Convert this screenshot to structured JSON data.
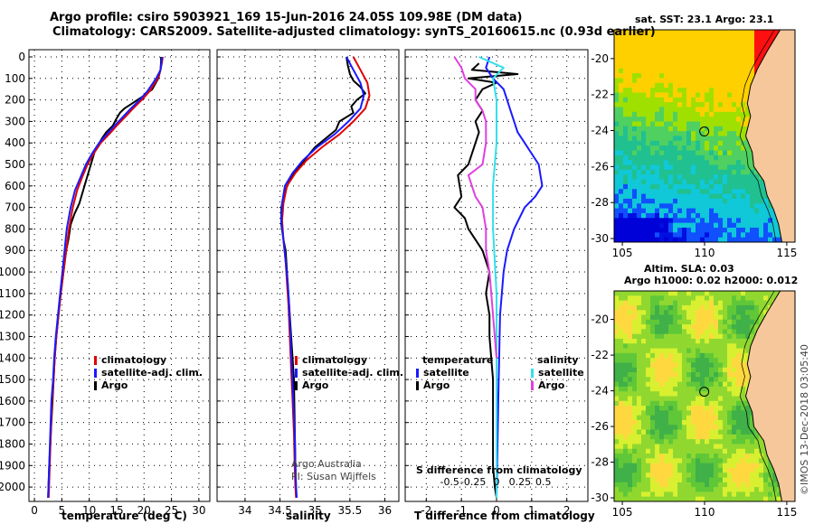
{
  "header": {
    "line1": "Argo profile: csiro 5903921_169 15-Jun-2016 24.05S 109.98E (DM data)",
    "line2": "Climatology: CARS2009. Satellite-adjusted climatology: synTS_20160615.nc (0.93d earlier)"
  },
  "credits": {
    "line1": "Argo Australia",
    "line2": "PI: Susan Wijffels",
    "side": "©IMOS 13-Dec-2018 03:05:40"
  },
  "colors": {
    "argo": "#000000",
    "climatology": "#e00000",
    "satellite": "#1a1aff",
    "satellite_salinity": "#33e0ee",
    "argo_salinity_diff": "#e040e0"
  },
  "depth_ticks": [
    "0",
    "100",
    "200",
    "300",
    "400",
    "500",
    "600",
    "700",
    "800",
    "900",
    "1000",
    "1100",
    "1200",
    "1300",
    "1400",
    "1500",
    "1600",
    "1700",
    "1800",
    "1900",
    "2000"
  ],
  "chart_data": [
    {
      "type": "line",
      "id": "temperature",
      "xlabel": "temperature (deg C)",
      "ylabel": "",
      "xlim": [
        -1,
        32
      ],
      "ylim": [
        2050,
        -10
      ],
      "x_ticks": [
        "0",
        "5",
        "10",
        "15",
        "20",
        "25",
        "30"
      ],
      "grid": true,
      "legend": [
        "climatology",
        "satellite-adj. clim.",
        "Argo"
      ],
      "series": [
        {
          "name": "Argo",
          "color_key": "argo",
          "x": [
            23.1,
            23.1,
            23.0,
            22.6,
            21.5,
            20.5,
            20.0,
            18.8,
            17.6,
            16.4,
            15.6,
            14.9,
            14.3,
            13.1,
            12.3,
            11.6,
            11.0,
            10.3,
            9.6,
            8.9,
            8.2,
            7.3,
            6.6,
            6.2,
            5.8,
            5.3,
            4.8,
            4.4,
            4.0,
            3.7,
            3.5,
            3.3,
            3.1,
            2.9,
            2.7,
            2.5
          ],
          "y": [
            0,
            20,
            60,
            100,
            150,
            170,
            180,
            200,
            220,
            240,
            260,
            290,
            320,
            350,
            380,
            410,
            440,
            500,
            560,
            620,
            680,
            730,
            780,
            850,
            900,
            1000,
            1100,
            1200,
            1300,
            1400,
            1500,
            1600,
            1700,
            1800,
            1900,
            2050
          ]
        },
        {
          "name": "climatology",
          "color_key": "climatology",
          "x": [
            23.4,
            23.3,
            23.0,
            22.5,
            21.0,
            19.6,
            18.0,
            16.5,
            15.0,
            13.6,
            12.1,
            10.8,
            9.7,
            8.7,
            7.8,
            7.0,
            6.3,
            5.8,
            5.3,
            4.8,
            4.4,
            4.0,
            3.7,
            3.5,
            3.2,
            3.0,
            2.8,
            2.6
          ],
          "y": [
            0,
            20,
            60,
            100,
            160,
            200,
            240,
            280,
            320,
            360,
            400,
            450,
            500,
            560,
            620,
            700,
            800,
            900,
            1000,
            1100,
            1200,
            1300,
            1400,
            1500,
            1600,
            1750,
            1900,
            2050
          ]
        },
        {
          "name": "satellite-adj. clim.",
          "color_key": "satellite",
          "x": [
            23.3,
            23.2,
            23.0,
            22.2,
            20.6,
            19.2,
            17.6,
            16.1,
            14.6,
            13.2,
            11.8,
            10.5,
            9.4,
            8.4,
            7.4,
            6.6,
            5.9,
            5.5,
            5.1,
            4.7,
            4.3,
            3.9,
            3.6,
            3.4,
            3.1,
            2.9,
            2.7,
            2.5
          ],
          "y": [
            0,
            20,
            60,
            100,
            160,
            200,
            240,
            280,
            320,
            360,
            400,
            450,
            500,
            560,
            620,
            700,
            800,
            900,
            1000,
            1100,
            1200,
            1300,
            1400,
            1500,
            1600,
            1750,
            1900,
            2050
          ]
        }
      ]
    },
    {
      "type": "line",
      "id": "salinity",
      "xlabel": "salinity",
      "ylabel": "",
      "xlim": [
        33.6,
        36.2
      ],
      "ylim": [
        2050,
        -10
      ],
      "x_ticks": [
        "34",
        "34.5",
        "35",
        "35.5",
        "36"
      ],
      "grid": true,
      "legend": [
        "climatology",
        "satellite-adj. clim.",
        "Argo"
      ],
      "series": [
        {
          "name": "Argo",
          "color_key": "argo",
          "x": [
            35.45,
            35.47,
            35.5,
            35.55,
            35.65,
            35.72,
            35.6,
            35.52,
            35.55,
            35.35,
            35.3,
            35.0,
            34.85,
            34.7,
            34.6,
            34.55,
            34.52,
            34.52,
            34.55,
            34.58,
            34.6,
            34.62,
            34.64,
            34.66,
            34.68,
            34.7,
            34.71,
            34.72,
            34.73
          ],
          "y": [
            0,
            40,
            80,
            110,
            140,
            170,
            200,
            230,
            260,
            300,
            340,
            420,
            480,
            540,
            600,
            650,
            700,
            780,
            850,
            900,
            1000,
            1100,
            1200,
            1300,
            1400,
            1500,
            1700,
            1900,
            2050
          ]
        },
        {
          "name": "climatology",
          "color_key": "climatology",
          "x": [
            35.55,
            35.65,
            35.75,
            35.78,
            35.72,
            35.55,
            35.35,
            35.1,
            34.88,
            34.72,
            34.6,
            34.55,
            34.53,
            34.55,
            34.58,
            34.6,
            34.62,
            34.64,
            34.66,
            34.68,
            34.7,
            34.71,
            34.72,
            34.73
          ],
          "y": [
            0,
            60,
            120,
            180,
            240,
            300,
            360,
            420,
            480,
            540,
            600,
            680,
            760,
            850,
            950,
            1050,
            1150,
            1300,
            1450,
            1600,
            1750,
            1900,
            2000,
            2050
          ]
        },
        {
          "name": "satellite-adj. clim.",
          "color_key": "satellite",
          "x": [
            35.45,
            35.55,
            35.65,
            35.7,
            35.65,
            35.48,
            35.28,
            35.03,
            34.83,
            34.68,
            34.57,
            34.53,
            34.52,
            34.55,
            34.58,
            34.61,
            34.63,
            34.65,
            34.67,
            34.69,
            34.71,
            34.72,
            34.73,
            34.74
          ],
          "y": [
            0,
            60,
            120,
            180,
            240,
            300,
            360,
            420,
            480,
            540,
            600,
            680,
            760,
            850,
            950,
            1050,
            1150,
            1300,
            1450,
            1600,
            1750,
            1900,
            2000,
            2050
          ]
        }
      ]
    },
    {
      "type": "line",
      "id": "difference",
      "xlabel": "T difference from climatology",
      "xlabel2": "S difference from climatology",
      "ylabel": "",
      "xlim": [
        -2.6,
        2.6
      ],
      "ylim": [
        2050,
        -10
      ],
      "x_ticks": [
        "-2",
        "-1",
        "0",
        "1",
        "2"
      ],
      "x_ticks2": [
        "-0.5",
        "-0.25",
        "0",
        "0.25",
        "0.5"
      ],
      "grid": true,
      "legend_left_title": "temperature",
      "legend_right_title": "salinity",
      "legend_left": [
        "satellite",
        "Argo"
      ],
      "legend_right": [
        "satellite",
        "Argo"
      ],
      "series": [
        {
          "name": "temperature Argo",
          "color_key": "argo",
          "x": [
            -0.5,
            -0.7,
            0.6,
            -0.8,
            0.0,
            -0.4,
            -0.6,
            -0.4,
            -0.6,
            -0.5,
            -0.6,
            -0.8,
            -1.1,
            -1.0,
            -1.2,
            -0.9,
            -0.8,
            -0.4,
            -0.2,
            -0.3,
            -0.2,
            -0.2,
            -0.1,
            -0.1,
            -0.1,
            -0.05,
            0.0
          ],
          "y": [
            30,
            60,
            80,
            100,
            120,
            150,
            200,
            250,
            300,
            350,
            400,
            500,
            550,
            650,
            700,
            750,
            800,
            900,
            1000,
            1100,
            1200,
            1300,
            1500,
            1700,
            1900,
            2000,
            2050
          ]
        },
        {
          "name": "temperature satellite",
          "color_key": "satellite",
          "x": [
            -0.2,
            -0.3,
            -0.1,
            0.2,
            0.3,
            0.4,
            0.5,
            0.6,
            0.8,
            1.2,
            1.3,
            1.1,
            0.8,
            0.5,
            0.3,
            0.2,
            0.1,
            0.05,
            0.0
          ],
          "y": [
            0,
            50,
            100,
            150,
            200,
            250,
            300,
            350,
            400,
            500,
            600,
            650,
            700,
            800,
            900,
            1000,
            1200,
            1600,
            2050
          ]
        },
        {
          "name": "salinity satellite",
          "color_key": "satellite_salinity",
          "x": [
            -0.5,
            0.2,
            -0.1,
            0.0,
            0.0,
            -0.1,
            -0.1,
            0.0,
            0.0,
            0.0
          ],
          "y": [
            0,
            50,
            100,
            200,
            400,
            600,
            800,
            1100,
            1500,
            2050
          ]
        },
        {
          "name": "salinity Argo",
          "color_key": "argo_salinity_diff",
          "x": [
            -1.2,
            -1.0,
            -0.9,
            -0.6,
            -0.6,
            -0.4,
            -0.3,
            -0.3,
            -0.4,
            -0.8,
            -0.6,
            -0.4,
            -0.3,
            -0.3,
            -0.2,
            -0.1,
            0.0
          ],
          "y": [
            0,
            50,
            100,
            150,
            200,
            250,
            300,
            400,
            500,
            550,
            650,
            700,
            800,
            900,
            1000,
            1200,
            1400
          ]
        }
      ]
    },
    {
      "type": "heatmap",
      "id": "sst-map",
      "title": "sat. SST: 23.1 Argo: 23.1",
      "xlim": [
        104.5,
        115.5
      ],
      "ylim": [
        -30.2,
        -18.4
      ],
      "x_ticks": [
        "105",
        "110",
        "115"
      ],
      "y_ticks": [
        "-20",
        "-22",
        "-24",
        "-26",
        "-28",
        "-30"
      ],
      "marker": {
        "lon": 109.98,
        "lat": -24.05
      }
    },
    {
      "type": "heatmap",
      "id": "sla-map",
      "title_line1": "Altim. SLA: 0.03",
      "title_line2": "Argo h1000: 0.02 h2000: 0.012",
      "xlim": [
        104.5,
        115.5
      ],
      "ylim": [
        -30.2,
        -18.4
      ],
      "x_ticks": [
        "105",
        "110",
        "115"
      ],
      "y_ticks": [
        "-20",
        "-22",
        "-24",
        "-26",
        "-28",
        "-30"
      ],
      "marker": {
        "lon": 109.98,
        "lat": -24.05
      }
    }
  ]
}
